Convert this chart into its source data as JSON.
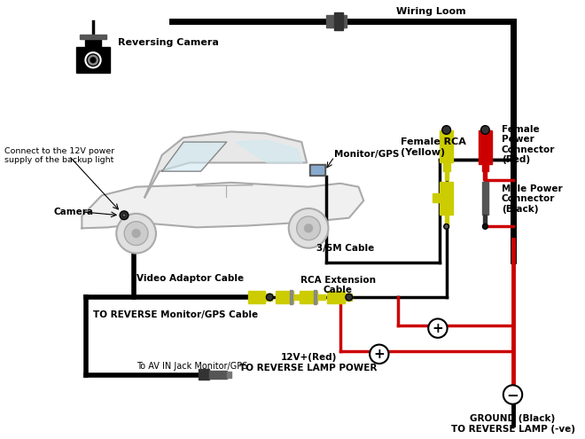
{
  "bg_color": "#ffffff",
  "labels": {
    "reversing_camera": "Reversing Camera",
    "wiring_loom": "Wiring Loom",
    "connect_12v": "Connect to the 12V power\nsupply of the backup light",
    "camera": "Camera",
    "monitor_gps": "Monitor/GPS",
    "cable_3_5m": "3/5M Cable",
    "video_adaptor": "Video Adaptor Cable",
    "to_reverse": "TO REVERSE Monitor/GPS Cable",
    "to_av": "To AV IN Jack Monitor/GPS",
    "female_rca": "Female RCA\n(Yellow)",
    "female_power": "Female\nPower\nConnector\n(Red)",
    "male_power": "Male Power\nConnector\n(Black)",
    "rca_ext": "RCA Extension\nCable",
    "plus_label": "12V+(Red)\nTO REVERSE LAMP POWER",
    "ground_label": "GROUND (Black)\nTO REVERSE LAMP (-ve)"
  },
  "colors": {
    "black": "#000000",
    "red": "#cc0000",
    "yellow_c": "#cccc00",
    "gray": "#888888",
    "light_gray": "#cccccc",
    "white": "#ffffff",
    "dark_gray": "#555555",
    "mid_gray": "#333333",
    "car_body": "#f0f0f0",
    "car_line": "#aaaaaa",
    "win_fill": "#d0e8f0"
  }
}
